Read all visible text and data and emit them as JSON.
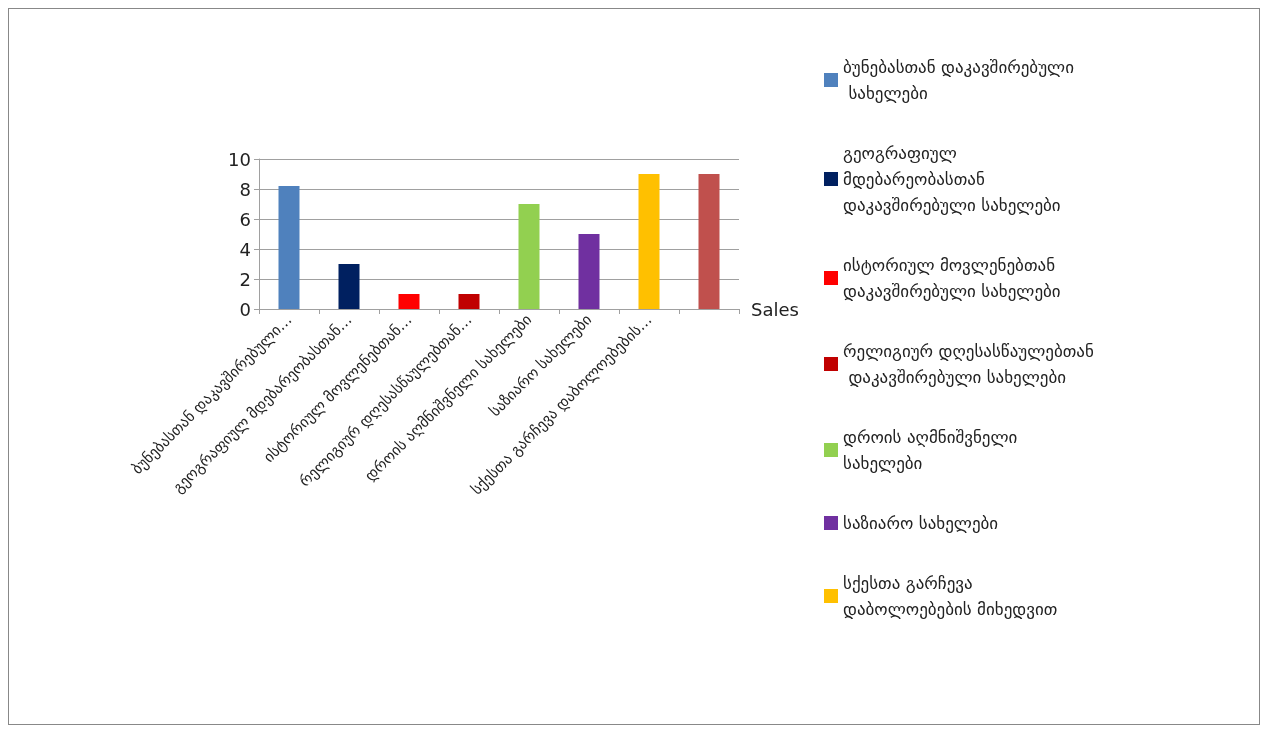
{
  "chart_data": {
    "type": "bar",
    "stacked": true,
    "xlabel": "Sales",
    "categories": [
      "ბუნებასთან დაკავშირებული…",
      "გეოგრაფიულ მდებარეობასთან…",
      "ისტორიულ მოვლენებთან…",
      "რელიგიურ დღესასწაულებთან…",
      "დროის აღმნიშვნელი სახელები",
      "საზიარო სახელები",
      "სქესთა გარჩევა დაბოლოებების…",
      null
    ],
    "series": [
      {
        "name": "ბუნებასთან დაკავშირებული სახელები",
        "color": "#4f81bd",
        "values": [
          8.2,
          null,
          null,
          null,
          null,
          null,
          null,
          null
        ]
      },
      {
        "name": "გეოგრაფიულ მდებარეობასთან დაკავშირებული სახელები",
        "color": "#002060",
        "values": [
          null,
          3,
          null,
          null,
          null,
          null,
          null,
          null
        ]
      },
      {
        "name": "ისტორიულ მოვლენებთან დაკავშირებული სახელები",
        "color": "#ff0000",
        "values": [
          null,
          null,
          1,
          null,
          null,
          null,
          null,
          null
        ]
      },
      {
        "name": "რელიგიურ დღესასწაულებთან დაკავშირებული სახელები",
        "color": "#c00000",
        "values": [
          null,
          null,
          null,
          1,
          null,
          null,
          null,
          null
        ]
      },
      {
        "name": "დროის აღმნიშვნელი სახელები",
        "color": "#92d050",
        "values": [
          null,
          null,
          null,
          null,
          7,
          null,
          null,
          null
        ]
      },
      {
        "name": "საზიარო სახელები",
        "color": "#7030a0",
        "values": [
          null,
          null,
          null,
          null,
          null,
          5,
          null,
          null
        ]
      },
      {
        "name": "სქესთა გარჩევა დაბოლოებების მიხედვით",
        "color": "#ffc000",
        "values": [
          null,
          null,
          null,
          null,
          null,
          null,
          9,
          null
        ]
      },
      {
        "color": "#c0504d",
        "values": [
          null,
          null,
          null,
          null,
          null,
          null,
          null,
          9
        ]
      }
    ],
    "ylim": [
      0,
      10
    ],
    "yticks": [
      0,
      2,
      4,
      6,
      8,
      10
    ],
    "grid": "y",
    "legend": "right"
  }
}
